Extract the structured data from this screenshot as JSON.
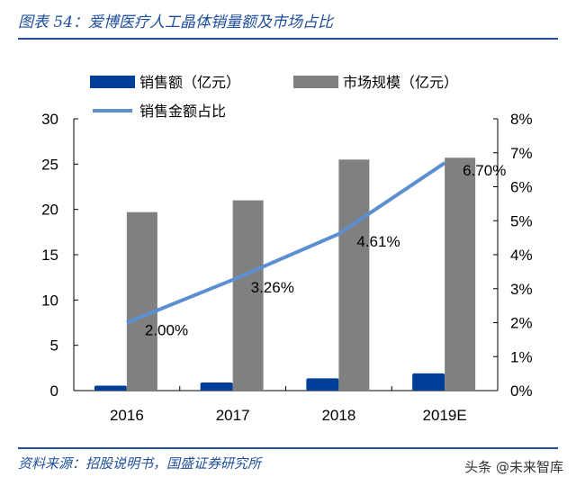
{
  "title": "图表 54：爱博医疗人工晶体销量额及市场占比",
  "source": "资料来源：招股说明书，国盛证券研究所",
  "watermark": "头条 @未来智库",
  "colors": {
    "sales": "#003f99",
    "market": "#808080",
    "ratio": "#5b8fd0",
    "title": "#1f4e9c"
  },
  "chart_data": {
    "type": "bar+line",
    "categories": [
      "2016",
      "2017",
      "2018",
      "2019E"
    ],
    "series": [
      {
        "name": "销售额（亿元）",
        "type": "bar",
        "axis": "left",
        "values": [
          0.55,
          0.9,
          1.35,
          1.9
        ]
      },
      {
        "name": "市场规模（亿元）",
        "type": "bar",
        "axis": "left",
        "values": [
          19.7,
          21.0,
          25.5,
          25.7
        ]
      },
      {
        "name": "销售金额占比",
        "type": "line",
        "axis": "right",
        "values": [
          2.0,
          3.26,
          4.61,
          6.7
        ],
        "labels": [
          "2.00%",
          "3.26%",
          "4.61%",
          "6.70%"
        ]
      }
    ],
    "ylim_left": [
      0,
      30
    ],
    "yticks_left": [
      "0",
      "5",
      "10",
      "15",
      "20",
      "25",
      "30"
    ],
    "ylim_right": [
      0,
      8
    ],
    "yticks_right": [
      "0%",
      "1%",
      "2%",
      "3%",
      "4%",
      "5%",
      "6%",
      "7%",
      "8%"
    ],
    "legend_placement": "top",
    "grid": false
  }
}
